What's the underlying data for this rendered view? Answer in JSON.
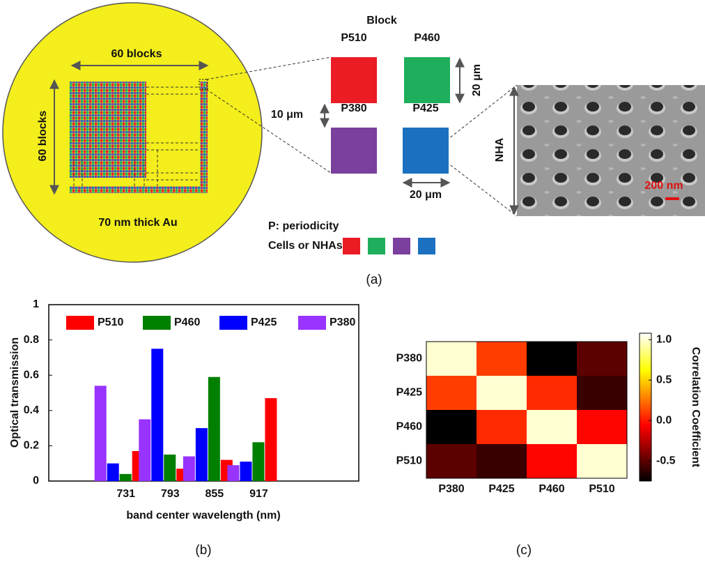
{
  "figure": {
    "block_title": "Block",
    "blocks_horizontal": "60 blocks",
    "blocks_vertical": "60 blocks",
    "substrate": "70 nm thick Au",
    "cells": [
      {
        "label": "P510",
        "color": "#ec1c24"
      },
      {
        "label": "P460",
        "color": "#1fae5b"
      },
      {
        "label": "P380",
        "color": "#7b3f9e"
      },
      {
        "label": "P425",
        "color": "#1b71bf"
      }
    ],
    "spacing": "10 μm",
    "cell_height": "20 μm",
    "cell_width": "20 μm",
    "nha_label": "NHA",
    "scale_bar": "200 nm",
    "legend_title": "P: periodicity",
    "legend_label": "Cells or NHAs:",
    "caption": "(a)"
  },
  "chart_data": [
    {
      "type": "bar",
      "categories": [
        "731",
        "793",
        "855",
        "917"
      ],
      "series": [
        {
          "name": "P510",
          "color": "#ff0000",
          "values": [
            0.17,
            0.07,
            0.12,
            0.47
          ]
        },
        {
          "name": "P460",
          "color": "#007f00",
          "values": [
            0.04,
            0.15,
            0.59,
            0.22
          ]
        },
        {
          "name": "P425",
          "color": "#0000ff",
          "values": [
            0.1,
            0.75,
            0.3,
            0.11
          ]
        },
        {
          "name": "P380",
          "color": "#9933ff",
          "values": [
            0.54,
            0.35,
            0.14,
            0.09
          ]
        }
      ],
      "xlabel": "band center wavelength (nm)",
      "ylabel": "Optical transmission",
      "ylim": [
        0,
        1
      ],
      "yticks": [
        0,
        0.2,
        0.4,
        0.6,
        0.8,
        1
      ],
      "legend": "top",
      "caption": "(b)"
    },
    {
      "type": "heatmap",
      "rows": [
        "P380",
        "P425",
        "P460",
        "P510"
      ],
      "columns": [
        "P380",
        "P425",
        "P460",
        "P510"
      ],
      "values": [
        [
          1,
          0.1,
          -0.8,
          -0.5
        ],
        [
          0.1,
          1,
          0.05,
          -0.6
        ],
        [
          -0.8,
          0.05,
          1,
          -0.05
        ],
        [
          -0.5,
          -0.6,
          -0.05,
          1
        ]
      ],
      "colormap": "hot",
      "clim": [
        -0.75,
        1.08
      ],
      "cticks": [
        -0.5,
        {
          "value": 0,
          "label": "0.0"
        },
        0.5,
        {
          "value": 1,
          "label": "1.0"
        }
      ],
      "colorbar_label": "Correlation Coefficient",
      "caption": "(c)"
    }
  ]
}
